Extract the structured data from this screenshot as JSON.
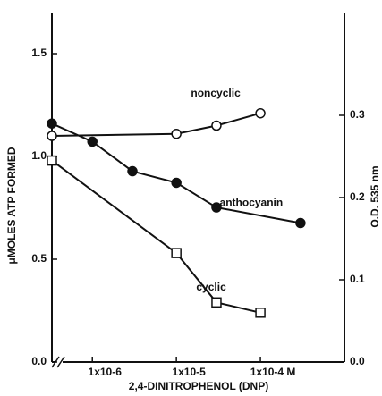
{
  "chart_data": {
    "type": "line",
    "x_scale": "log",
    "xlabel": "2,4-DINITROPHENOL (DNP)",
    "ylabel": "μMOLES ATP FORMED",
    "y2label": "O.D. 535 nm",
    "xlim": [
      3.3e-07,
      0.001
    ],
    "xticks": [
      {
        "value": 1e-06,
        "label": "1x10-6"
      },
      {
        "value": 1e-05,
        "label": "1x10-5"
      },
      {
        "value": 0.0001,
        "label": "1x10-4 M"
      }
    ],
    "ylim": [
      0,
      1.7
    ],
    "yticks": [
      {
        "value": 0,
        "label": "0.0"
      },
      0.5,
      {
        "value": 1,
        "label": "1.0"
      },
      1.5
    ],
    "y2lim": [
      0,
      0.425
    ],
    "y2ticks": [
      {
        "value": 0,
        "label": "0.0"
      },
      0.1,
      0.2,
      0.3
    ],
    "series": [
      {
        "name": "noncyclic",
        "color": "#111",
        "marker": "open-circle",
        "x": [
          null,
          1e-05,
          3e-05,
          0.0001
        ],
        "values": [
          1.1,
          1.11,
          1.15,
          1.21
        ]
      },
      {
        "name": "anthocyanin",
        "color": "#111",
        "marker": "filled-circle",
        "axis": "y2",
        "x": [
          null,
          1e-06,
          3e-06,
          1e-05,
          3e-05,
          0.0003
        ],
        "values": [
          0.29,
          0.268,
          0.232,
          0.218,
          0.188,
          0.169
        ]
      },
      {
        "name": "cyclic",
        "color": "#111",
        "marker": "open-square",
        "x": [
          null,
          1e-05,
          3e-05,
          0.0001
        ],
        "values": [
          0.98,
          0.53,
          0.29,
          0.24
        ]
      }
    ]
  }
}
